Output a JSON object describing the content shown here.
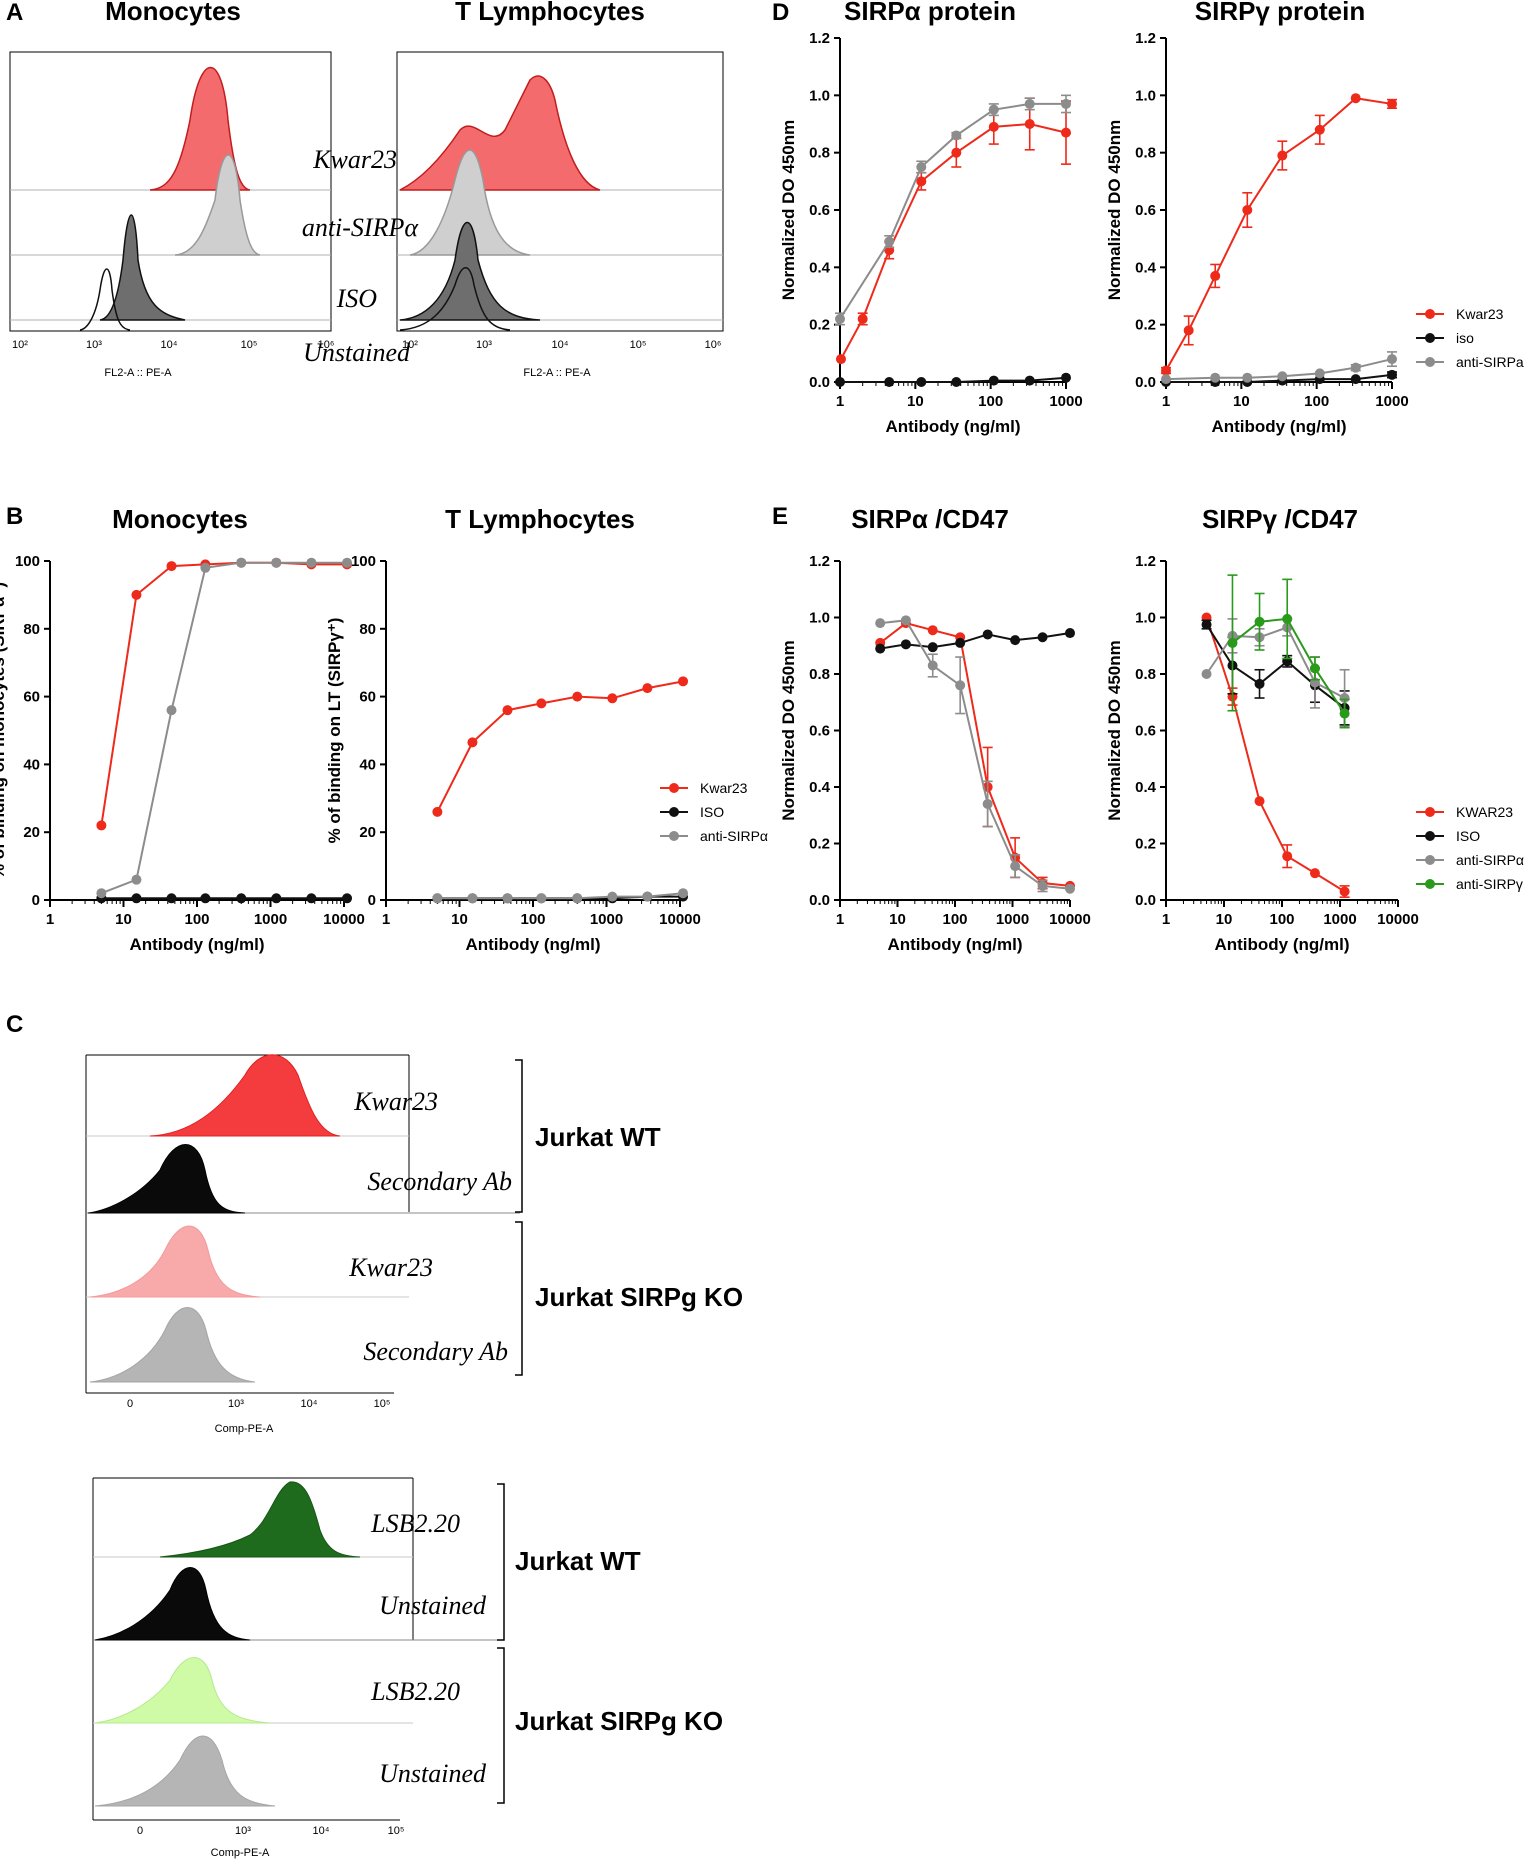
{
  "colors": {
    "red": "#ee2a1a",
    "black": "#111111",
    "gray": "#8c8c8c",
    "green": "#2a9a1a",
    "hist_red": "#f46b6e",
    "hist_lightgray": "#cfcfcf",
    "hist_darkgray": "#6e6e6e",
    "hist_black": "#0a0a0a",
    "hist_pink": "#f8a9aa",
    "hist_gray": "#b5b5b5",
    "hist_darkgreen": "#1e6b1e",
    "hist_lightgreen": "#cffba6"
  },
  "panels": {
    "A": {
      "letter": "A",
      "flowx": "FL2-A :: PE-A",
      "left_title": "Monocytes",
      "right_title": "T Lymphocytes",
      "labels": [
        "Kwar23",
        "anti-SIRPα",
        "ISO",
        "Unstained"
      ],
      "ticks": [
        "10²",
        "10³",
        "10⁴",
        "10⁵",
        "10⁶"
      ]
    },
    "B": {
      "letter": "B"
    },
    "C": {
      "letter": "C",
      "flowx": "Comp-PE-A",
      "top_labels": [
        "Kwar23",
        "Secondary Ab",
        "Kwar23",
        "Secondary Ab"
      ],
      "bottom_labels": [
        "LSB2.20",
        "Unstained",
        "LSB2.20",
        "Unstained"
      ],
      "groups": [
        "Jurkat WT",
        "Jurkat SIRPg KO",
        "Jurkat WT",
        "Jurkat SIRPg KO"
      ],
      "ticks": [
        "0",
        "10³",
        "10⁴",
        "10⁵"
      ]
    },
    "D": {
      "letter": "D"
    },
    "E": {
      "letter": "E"
    }
  },
  "chart_data": [
    {
      "id": "B1",
      "type": "line",
      "title": "Monocytes",
      "xlabel": "Antibody (ng/ml)",
      "ylabel": "% of binding on monocytes (SIRPα⁺)",
      "xscale": "log",
      "xlim": [
        1,
        10000
      ],
      "ylim": [
        0,
        100
      ],
      "xticks": [
        "1",
        "10",
        "100",
        "1000",
        "10000"
      ],
      "yticks": [
        "0",
        "20",
        "40",
        "60",
        "80",
        "100"
      ],
      "legend": "right",
      "series": [
        {
          "name": "Kwar23",
          "color": "red",
          "x": [
            5,
            15,
            45,
            130,
            400,
            1200,
            3600,
            11000
          ],
          "y": [
            22,
            90,
            98.5,
            99,
            99.5,
            99.5,
            99,
            99
          ]
        },
        {
          "name": "ISO",
          "color": "black",
          "x": [
            5,
            15,
            45,
            130,
            400,
            1200,
            3600,
            11000
          ],
          "y": [
            0.5,
            0.5,
            0.5,
            0.5,
            0.5,
            0.5,
            0.5,
            0.5
          ]
        },
        {
          "name": "anti-SIRPα",
          "color": "gray",
          "x": [
            5,
            15,
            45,
            130,
            400,
            1200,
            3600,
            11000
          ],
          "y": [
            2,
            6,
            56,
            98,
            99.5,
            99.5,
            99.5,
            99.5
          ]
        }
      ]
    },
    {
      "id": "B2",
      "type": "line",
      "title": "T Lymphocytes",
      "xlabel": "Antibody (ng/ml)",
      "ylabel": "% of binding on LT (SIRPγ⁺)",
      "xscale": "log",
      "xlim": [
        1,
        10000
      ],
      "ylim": [
        0,
        100
      ],
      "xticks": [
        "1",
        "10",
        "100",
        "1000",
        "10000"
      ],
      "yticks": [
        "0",
        "20",
        "40",
        "60",
        "80",
        "100"
      ],
      "series": [
        {
          "name": "Kwar23",
          "color": "red",
          "x": [
            5,
            15,
            45,
            130,
            400,
            1200,
            3600,
            11000
          ],
          "y": [
            26,
            46.5,
            56,
            58,
            60,
            59.5,
            62.5,
            64.5
          ]
        },
        {
          "name": "ISO",
          "color": "black",
          "x": [
            5,
            15,
            45,
            130,
            400,
            1200,
            3600,
            11000
          ],
          "y": [
            0.5,
            0.5,
            0.5,
            0.5,
            0.5,
            0.5,
            1,
            1
          ]
        },
        {
          "name": "anti-SIRPα",
          "color": "gray",
          "x": [
            5,
            15,
            45,
            130,
            400,
            1200,
            3600,
            11000
          ],
          "y": [
            0.5,
            0.5,
            0.5,
            0.5,
            0.5,
            1,
            1,
            2
          ]
        }
      ]
    },
    {
      "id": "D1",
      "type": "line",
      "title": "SIRPα protein",
      "xlabel": "Antibody (ng/ml)",
      "ylabel": "Normalized DO 450nm",
      "xscale": "log",
      "xlim": [
        1,
        1000
      ],
      "ylim": [
        0,
        1.2
      ],
      "xticks": [
        "1",
        "10",
        "100",
        "1000"
      ],
      "yticks": [
        "0.0",
        "0.2",
        "0.4",
        "0.6",
        "0.8",
        "1.0",
        "1.2"
      ],
      "series": [
        {
          "name": "Kwar23",
          "color": "red",
          "x": [
            1.03,
            2,
            4.5,
            12,
            35,
            110,
            330,
            1000
          ],
          "y": [
            0.08,
            0.22,
            0.46,
            0.7,
            0.8,
            0.89,
            0.9,
            0.87
          ],
          "err": [
            0,
            0.02,
            0.03,
            0.03,
            0.05,
            0.06,
            0.09,
            0.11
          ]
        },
        {
          "name": "iso",
          "color": "black",
          "x": [
            1,
            4.5,
            12,
            35,
            110,
            330,
            1000
          ],
          "y": [
            0,
            0,
            0,
            0,
            0.005,
            0.005,
            0.015
          ],
          "err": [
            0,
            0,
            0,
            0,
            0,
            0,
            0
          ]
        },
        {
          "name": "anti-SIRPa",
          "color": "gray",
          "x": [
            1,
            4.5,
            12,
            35,
            110,
            330,
            1000
          ],
          "y": [
            0.22,
            0.49,
            0.75,
            0.86,
            0.95,
            0.97,
            0.97
          ],
          "err": [
            0.02,
            0.02,
            0.02,
            0.01,
            0.02,
            0.02,
            0.03
          ]
        }
      ]
    },
    {
      "id": "D2",
      "type": "line",
      "title": "SIRPγ protein",
      "xlabel": "Antibody (ng/ml)",
      "ylabel": "Normalized DO 450nm",
      "xscale": "log",
      "xlim": [
        1,
        1000
      ],
      "ylim": [
        0,
        1.2
      ],
      "xticks": [
        "1",
        "10",
        "100",
        "1000"
      ],
      "yticks": [
        "0.0",
        "0.2",
        "0.4",
        "0.6",
        "0.8",
        "1.0",
        "1.2"
      ],
      "legend": "right",
      "series": [
        {
          "name": "Kwar23",
          "color": "red",
          "x": [
            1,
            2,
            4.5,
            12,
            35,
            110,
            330,
            1000
          ],
          "y": [
            0.04,
            0.18,
            0.37,
            0.6,
            0.79,
            0.88,
            0.99,
            0.97
          ],
          "err": [
            0.01,
            0.05,
            0.04,
            0.06,
            0.05,
            0.05,
            0,
            0.015
          ]
        },
        {
          "name": "iso",
          "color": "black",
          "x": [
            1,
            4.5,
            12,
            35,
            110,
            330,
            1000
          ],
          "y": [
            0,
            0,
            0,
            0.005,
            0.01,
            0.01,
            0.025
          ],
          "err": [
            0,
            0,
            0,
            0,
            0,
            0,
            0.01
          ]
        },
        {
          "name": "anti-SIRPa",
          "color": "gray",
          "x": [
            1,
            4.5,
            12,
            35,
            110,
            330,
            1000
          ],
          "y": [
            0.01,
            0.015,
            0.015,
            0.02,
            0.03,
            0.05,
            0.08
          ],
          "err": [
            0,
            0,
            0,
            0,
            0,
            0.01,
            0.025
          ]
        }
      ]
    },
    {
      "id": "E1",
      "type": "line",
      "title": "SIRPα /CD47",
      "xlabel": "Antibody (ng/ml)",
      "ylabel": "Normalized DO 450nm",
      "xscale": "log",
      "xlim": [
        1,
        10000
      ],
      "ylim": [
        0,
        1.2
      ],
      "xticks": [
        "1",
        "10",
        "100",
        "1000",
        "10000"
      ],
      "yticks": [
        "0.0",
        "0.2",
        "0.4",
        "0.6",
        "0.8",
        "1.0",
        "1.2"
      ],
      "series": [
        {
          "name": "KWAR23",
          "color": "red",
          "x": [
            5,
            14,
            41,
            123,
            370,
            1111,
            3333,
            10000
          ],
          "y": [
            0.91,
            0.98,
            0.955,
            0.93,
            0.4,
            0.15,
            0.06,
            0.05
          ],
          "err": [
            0,
            0,
            0,
            0,
            0.14,
            0.07,
            0.02,
            0
          ]
        },
        {
          "name": "ISO",
          "color": "black",
          "x": [
            5,
            14,
            41,
            123,
            370,
            1111,
            3333,
            10000
          ],
          "y": [
            0.89,
            0.905,
            0.895,
            0.91,
            0.94,
            0.92,
            0.93,
            0.945
          ],
          "err": [
            0,
            0,
            0,
            0,
            0,
            0,
            0,
            0
          ]
        },
        {
          "name": "anti-SIRPα",
          "color": "gray",
          "x": [
            5,
            14,
            41,
            123,
            370,
            1111,
            3333,
            10000
          ],
          "y": [
            0.98,
            0.99,
            0.83,
            0.76,
            0.34,
            0.12,
            0.05,
            0.04
          ],
          "err": [
            0,
            0,
            0.04,
            0.1,
            0.08,
            0.04,
            0.02,
            0
          ]
        }
      ]
    },
    {
      "id": "E2",
      "type": "line",
      "title": "SIRPγ /CD47",
      "xlabel": "Antibody (ng/ml)",
      "ylabel": "Normalized DO 450nm",
      "xscale": "log",
      "xlim": [
        1,
        10000
      ],
      "ylim": [
        0,
        1.2
      ],
      "xticks": [
        "1",
        "10",
        "100",
        "1000",
        "10000"
      ],
      "yticks": [
        "0.0",
        "0.2",
        "0.4",
        "0.6",
        "0.8",
        "1.0",
        "1.2"
      ],
      "legend": "right",
      "series": [
        {
          "name": "KWAR23",
          "color": "red",
          "x": [
            5,
            14,
            41,
            123,
            370,
            1200
          ],
          "y": [
            1.0,
            0.72,
            0.35,
            0.155,
            0.095,
            0.03
          ],
          "err": [
            0,
            0.03,
            0,
            0.04,
            0,
            0.02
          ]
        },
        {
          "name": "ISO",
          "color": "black",
          "x": [
            5,
            14,
            41,
            123,
            370,
            1200
          ],
          "y": [
            0.975,
            0.83,
            0.765,
            0.845,
            0.76,
            0.68
          ],
          "err": [
            0.015,
            0.1,
            0.05,
            0.02,
            0.06,
            0.06
          ]
        },
        {
          "name": "anti-SIRPα",
          "color": "gray",
          "x": [
            5,
            14,
            41,
            123,
            370,
            1200
          ],
          "y": [
            0.8,
            0.935,
            0.93,
            0.965,
            0.77,
            0.715
          ],
          "err": [
            0,
            0.06,
            0.03,
            0.03,
            0.09,
            0.1
          ]
        },
        {
          "name": "anti-SIRPγ",
          "color": "green",
          "x": [
            14,
            41,
            123,
            370,
            1200
          ],
          "y": [
            0.91,
            0.985,
            0.995,
            0.82,
            0.66
          ],
          "err": [
            0.24,
            0.1,
            0.14,
            0.04,
            0.05
          ]
        }
      ]
    }
  ]
}
